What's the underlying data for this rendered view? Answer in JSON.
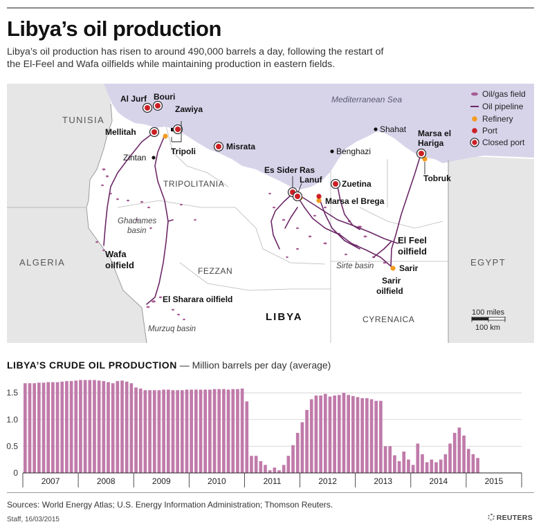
{
  "header": {
    "title": "Libya’s oil production",
    "subtitle": "Libya’s oil production has risen to around 490,000 barrels a day, following the restart of the El-Feel and Wafa oilfields while maintaining production in eastern fields."
  },
  "map": {
    "sea_label": "Mediterranean Sea",
    "countries": [
      "TUNISIA",
      "ALGERIA",
      "EGYPT"
    ],
    "country_main": "LIBYA",
    "regions": [
      "TRIPOLITANIA",
      "FEZZAN",
      "CYRENAICA"
    ],
    "basins": [
      "Ghadames basin",
      "Murzuq basin",
      "Sirte basin"
    ],
    "towns": [
      "Zintan",
      "Benghazi",
      "Shahat"
    ],
    "ports_closed": [
      "Al Jurf",
      "Bouri",
      "Zawiya",
      "Mellitah",
      "Misrata",
      "Es Sider",
      "Ras Lanuf",
      "Zuetina",
      "Marsa el Hariga"
    ],
    "ports": [
      "Marsa el Brega"
    ],
    "labels": {
      "tripoli": "Tripoli",
      "tobruk": "Tobruk",
      "sarir": "Sarir",
      "sarir_field_1": "Sarir",
      "sarir_field_2": "oilfield",
      "el_feel_1": "El Feel",
      "el_feel_2": "oilfield",
      "wafa_1": "Wafa",
      "wafa_2": "oilfield",
      "el_sharara": "El Sharara oilfield",
      "marsa_hariga_1": "Marsa el",
      "marsa_hariga_2": "Hariga",
      "ras_lanuf_1": "Ras",
      "ras_lanuf_2": "Lanuf"
    },
    "legend": [
      "Oil/gas field",
      "Oil pipeline",
      "Refinery",
      "Port",
      "Closed port"
    ],
    "scale": {
      "miles": "100 miles",
      "km": "100 km"
    },
    "colors": {
      "sea": "#d7d4ea",
      "land": "#ffffff",
      "neighbor": "#e6e6e6",
      "pipeline": "#6b2766",
      "field": "#a75b94",
      "refinery": "#f39c1f",
      "port": "#cc1f26"
    }
  },
  "chart_heading": {
    "bold": "LIBYA’S CRUDE OIL PRODUCTION",
    "normal": " — Million barrels per day (average)"
  },
  "chart_data": {
    "type": "bar",
    "title": "LIBYA’S CRUDE OIL PRODUCTION",
    "ylabel": "Million barrels per day (average)",
    "xlabel": "",
    "ylim": [
      0,
      1.8
    ],
    "yticks": [
      0,
      0.5,
      1.0,
      1.5
    ],
    "ytick_labels": [
      "0",
      "0.5",
      "1.0",
      "1.5"
    ],
    "year_labels": [
      "2007",
      "2008",
      "2009",
      "2010",
      "2011",
      "2012",
      "2013",
      "2014",
      "2015"
    ],
    "bar_color": "#c07aaa",
    "months_per_year": 12,
    "values": [
      1.68,
      1.68,
      1.68,
      1.69,
      1.69,
      1.7,
      1.7,
      1.7,
      1.71,
      1.72,
      1.72,
      1.73,
      1.74,
      1.74,
      1.74,
      1.74,
      1.73,
      1.72,
      1.7,
      1.68,
      1.72,
      1.73,
      1.71,
      1.68,
      1.6,
      1.58,
      1.55,
      1.55,
      1.55,
      1.55,
      1.56,
      1.56,
      1.55,
      1.55,
      1.55,
      1.56,
      1.56,
      1.56,
      1.56,
      1.56,
      1.56,
      1.57,
      1.57,
      1.57,
      1.56,
      1.57,
      1.57,
      1.58,
      1.34,
      0.32,
      0.32,
      0.22,
      0.15,
      0.05,
      0.1,
      0.05,
      0.15,
      0.32,
      0.52,
      0.75,
      0.95,
      1.18,
      1.38,
      1.45,
      1.45,
      1.48,
      1.43,
      1.45,
      1.46,
      1.5,
      1.46,
      1.44,
      1.42,
      1.4,
      1.4,
      1.38,
      1.35,
      1.35,
      0.5,
      0.5,
      0.33,
      0.22,
      0.4,
      0.25,
      0.15,
      0.55,
      0.35,
      0.2,
      0.25,
      0.2,
      0.25,
      0.35,
      0.55,
      0.75,
      0.85,
      0.7,
      0.45,
      0.35,
      0.28
    ]
  },
  "footer": {
    "sources": "Sources: World Energy Atlas; U.S. Energy Information Administration; Thomson Reuters.",
    "credit": "Staff, 16/03/2015",
    "brand": "REUTERS"
  }
}
